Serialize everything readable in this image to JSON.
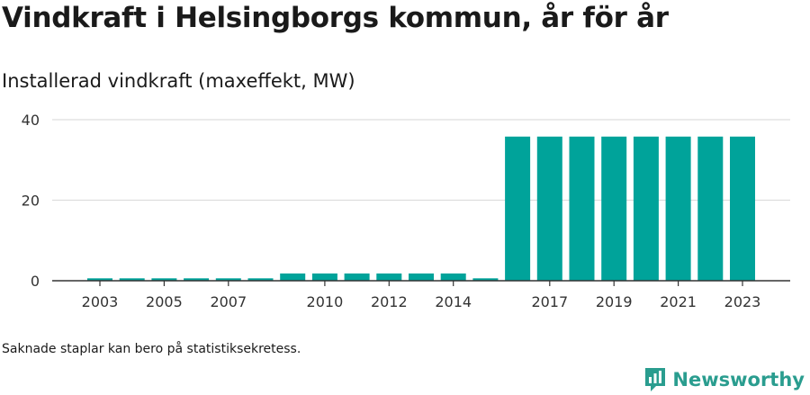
{
  "title": "Vindkraft i Helsingborgs kommun, år för år",
  "subtitle": "Installerad vindkraft (maxeffekt, MW)",
  "footnote": "Saknade staplar kan bero på statistiksekretess.",
  "brand": {
    "name": "Newsworthy",
    "icon": "newsworthy-logo-icon",
    "color": "#2a9d8f"
  },
  "colors": {
    "bar": "#00a39a",
    "grid": "#dddddd",
    "axis": "#333333"
  },
  "chart_data": {
    "type": "bar",
    "title": "Installerad vindkraft (maxeffekt, MW)",
    "xlabel": "",
    "ylabel": "",
    "categories": [
      "2003",
      "2004",
      "2005",
      "2006",
      "2007",
      "2008",
      "2009",
      "2010",
      "2011",
      "2012",
      "2013",
      "2014",
      "2015",
      "2016",
      "2017",
      "2018",
      "2019",
      "2020",
      "2021",
      "2022",
      "2023"
    ],
    "values": [
      0.6,
      0.6,
      0.6,
      0.6,
      0.6,
      0.6,
      1.8,
      1.8,
      1.8,
      1.8,
      1.8,
      1.8,
      0.6,
      35.8,
      35.8,
      35.8,
      35.8,
      35.8,
      35.8,
      35.8,
      35.8
    ],
    "x_tick_labels": [
      "2003",
      "2005",
      "2007",
      "2010",
      "2012",
      "2014",
      "2017",
      "2019",
      "2021",
      "2023"
    ],
    "y_ticks": [
      0,
      20,
      40
    ],
    "ylim": [
      0,
      40
    ],
    "grid": true,
    "legend": "none"
  }
}
